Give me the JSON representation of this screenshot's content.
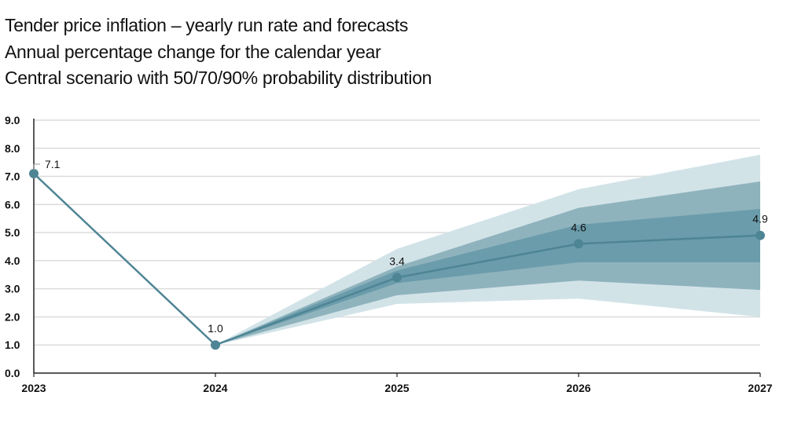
{
  "chart_data": {
    "type": "line",
    "title": "Tender price inflation – yearly run rate and forecasts",
    "subtitle": "Annual percentage change for the calendar year",
    "subtitle2": "Central scenario with 50/70/90% probability distribution",
    "xlabel": "",
    "ylabel": "",
    "ylim": [
      0,
      9
    ],
    "grid": true,
    "categories": [
      "2023",
      "2024",
      "2025",
      "2026",
      "2027"
    ],
    "yticks": [
      "0.0",
      "1.0",
      "2.0",
      "3.0",
      "4.0",
      "5.0",
      "6.0",
      "7.0",
      "8.0",
      "9.0"
    ],
    "series": [
      {
        "values": [
          7.1,
          1.0,
          3.4,
          4.6,
          4.9
        ],
        "labels": [
          "7.1",
          "1.0",
          "3.4",
          "4.6",
          "4.9"
        ],
        "color": "#4e8595"
      }
    ],
    "bands": [
      {
        "level": "90%",
        "color": "#d2e3e8",
        "upper": [
          null,
          1.0,
          4.42,
          6.54,
          7.77
        ],
        "lower": [
          null,
          1.0,
          2.46,
          2.65,
          2.0
        ]
      },
      {
        "level": "70%",
        "color": "#8fb3bd",
        "upper": [
          null,
          1.0,
          3.79,
          5.88,
          6.82
        ],
        "lower": [
          null,
          1.0,
          2.77,
          3.29,
          2.96
        ]
      },
      {
        "level": "50%",
        "color": "#6b9cab",
        "upper": [
          null,
          1.0,
          3.65,
          5.28,
          5.84
        ],
        "lower": [
          null,
          1.0,
          3.2,
          3.94,
          3.94
        ]
      }
    ]
  }
}
